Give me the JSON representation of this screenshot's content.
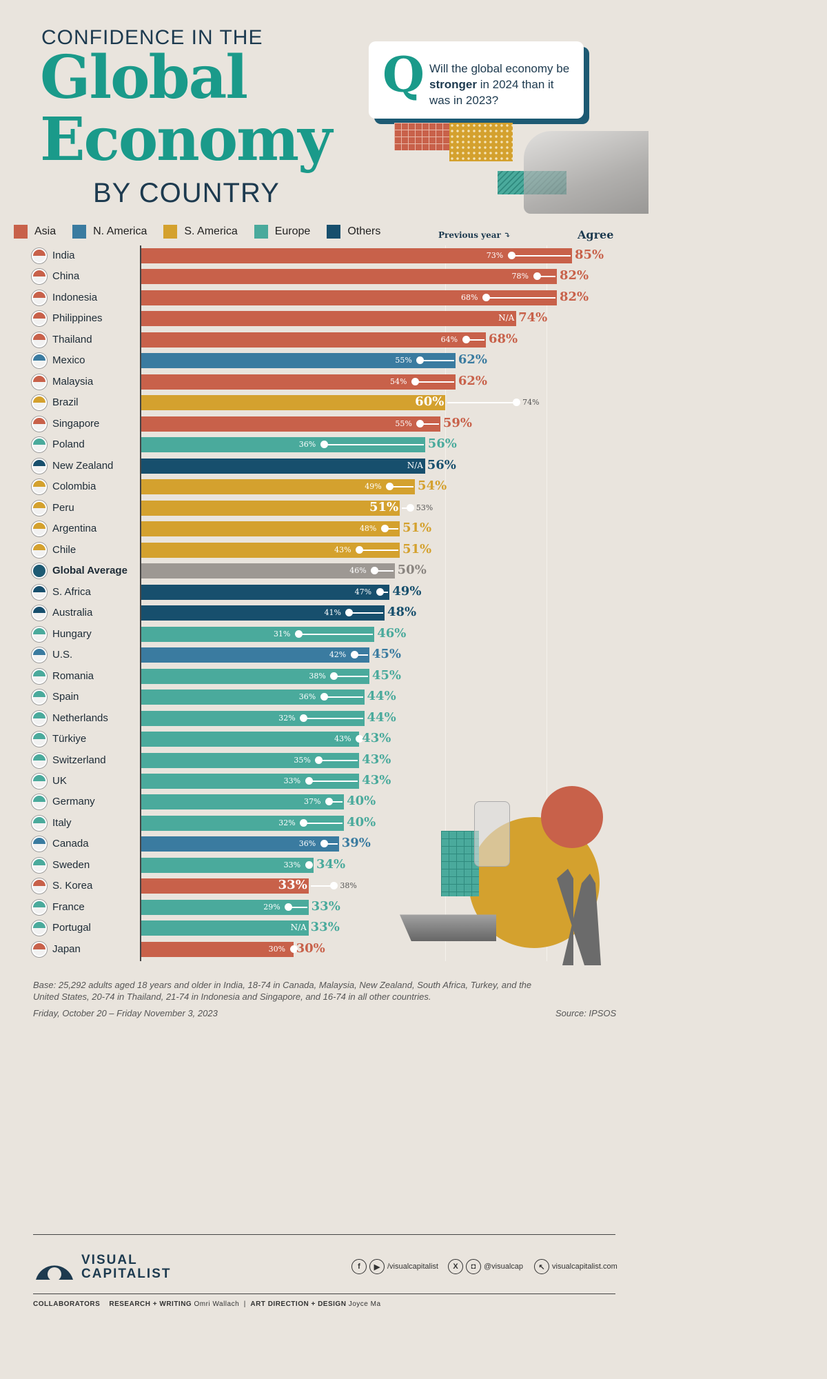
{
  "header": {
    "line1": "CONFIDENCE IN THE",
    "line2": "Global",
    "line3": "Economy",
    "line4": "BY COUNTRY"
  },
  "question": {
    "mark": "Q",
    "text_before": "Will the global economy be ",
    "text_bold": "stronger",
    "text_after": " in 2024 than it was in 2023?"
  },
  "legend": [
    {
      "label": "Asia",
      "color": "#c8614a"
    },
    {
      "label": "N. America",
      "color": "#3a7ba0"
    },
    {
      "label": "S. America",
      "color": "#d4a12e"
    },
    {
      "label": "Europe",
      "color": "#4aaa9c"
    },
    {
      "label": "Others",
      "color": "#174f6d"
    }
  ],
  "annotations": {
    "previous_year": "Previous year ⤵",
    "agree": "Agree",
    "na": "N/A"
  },
  "chart_data": {
    "type": "bar",
    "orientation": "horizontal",
    "xlim": [
      0,
      85
    ],
    "rows": [
      {
        "country": "India",
        "region": "Asia",
        "value": 85,
        "previous": 73
      },
      {
        "country": "China",
        "region": "Asia",
        "value": 82,
        "previous": 78
      },
      {
        "country": "Indonesia",
        "region": "Asia",
        "value": 82,
        "previous": 68
      },
      {
        "country": "Philippines",
        "region": "Asia",
        "value": 74,
        "previous": null
      },
      {
        "country": "Thailand",
        "region": "Asia",
        "value": 68,
        "previous": 64
      },
      {
        "country": "Mexico",
        "region": "N. America",
        "value": 62,
        "previous": 55
      },
      {
        "country": "Malaysia",
        "region": "Asia",
        "value": 62,
        "previous": 54
      },
      {
        "country": "Brazil",
        "region": "S. America",
        "value": 60,
        "previous": 74
      },
      {
        "country": "Singapore",
        "region": "Asia",
        "value": 59,
        "previous": 55
      },
      {
        "country": "Poland",
        "region": "Europe",
        "value": 56,
        "previous": 36
      },
      {
        "country": "New Zealand",
        "region": "Others",
        "value": 56,
        "previous": null
      },
      {
        "country": "Colombia",
        "region": "S. America",
        "value": 54,
        "previous": 49
      },
      {
        "country": "Peru",
        "region": "S. America",
        "value": 51,
        "previous": 53
      },
      {
        "country": "Argentina",
        "region": "S. America",
        "value": 51,
        "previous": 48
      },
      {
        "country": "Chile",
        "region": "S. America",
        "value": 51,
        "previous": 43
      },
      {
        "country": "Global Average",
        "region": "Global",
        "value": 50,
        "previous": 46
      },
      {
        "country": "S. Africa",
        "region": "Others",
        "value": 49,
        "previous": 47
      },
      {
        "country": "Australia",
        "region": "Others",
        "value": 48,
        "previous": 41
      },
      {
        "country": "Hungary",
        "region": "Europe",
        "value": 46,
        "previous": 31
      },
      {
        "country": "U.S.",
        "region": "N. America",
        "value": 45,
        "previous": 42
      },
      {
        "country": "Romania",
        "region": "Europe",
        "value": 45,
        "previous": 38
      },
      {
        "country": "Spain",
        "region": "Europe",
        "value": 44,
        "previous": 36
      },
      {
        "country": "Netherlands",
        "region": "Europe",
        "value": 44,
        "previous": 32
      },
      {
        "country": "Türkiye",
        "region": "Europe",
        "value": 43,
        "previous": 43
      },
      {
        "country": "Switzerland",
        "region": "Europe",
        "value": 43,
        "previous": 35
      },
      {
        "country": "UK",
        "region": "Europe",
        "value": 43,
        "previous": 33
      },
      {
        "country": "Germany",
        "region": "Europe",
        "value": 40,
        "previous": 37
      },
      {
        "country": "Italy",
        "region": "Europe",
        "value": 40,
        "previous": 32
      },
      {
        "country": "Canada",
        "region": "N. America",
        "value": 39,
        "previous": 36
      },
      {
        "country": "Sweden",
        "region": "Europe",
        "value": 34,
        "previous": 33
      },
      {
        "country": "S. Korea",
        "region": "Asia",
        "value": 33,
        "previous": 38
      },
      {
        "country": "France",
        "region": "Europe",
        "value": 33,
        "previous": 29
      },
      {
        "country": "Portugal",
        "region": "Europe",
        "value": 33,
        "previous": null
      },
      {
        "country": "Japan",
        "region": "Asia",
        "value": 30,
        "previous": 30
      }
    ],
    "region_colors": {
      "Asia": "#c8614a",
      "N. America": "#3a7ba0",
      "S. America": "#d4a12e",
      "Europe": "#4aaa9c",
      "Others": "#174f6d",
      "Global": "#9d9893"
    }
  },
  "footer": {
    "base": "Base: 25,292 adults aged 18 years and older in India, 18-74 in Canada, Malaysia, New Zealand, South Africa, Turkey, and the United States, 20-74 in Thailand, 21-74 in Indonesia and Singapore, and 16-74 in all other countries.",
    "date": "Friday, October 20 – Friday November 3, 2023",
    "source": "Source: IPSOS",
    "logo_line1": "VISUAL",
    "logo_line2": "CAPITALIST",
    "social1": "/visualcapitalist",
    "social2": "@visualcap",
    "website": "visualcapitalist.com",
    "collaborators": "COLLABORATORS",
    "research_label": "RESEARCH + WRITING",
    "research_name": "Omri Wallach",
    "design_label": "ART DIRECTION + DESIGN",
    "design_name": "Joyce Ma"
  }
}
